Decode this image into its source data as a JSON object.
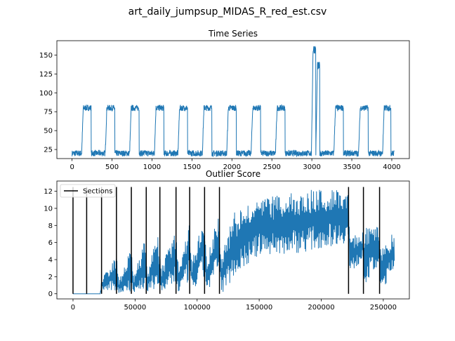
{
  "figure": {
    "suptitle": "art_daily_jumpsup_MIDAS_R_red_est.csv",
    "series_color": "#1f77b4",
    "section_color": "#000000"
  },
  "chart_data": [
    {
      "type": "line",
      "title": "Time Series",
      "xlabel": "",
      "ylabel": "",
      "xlim": [
        -190,
        4220
      ],
      "ylim": [
        13,
        169
      ],
      "xticks": [
        0,
        500,
        1000,
        1500,
        2000,
        2500,
        3000,
        3500,
        4000
      ],
      "yticks": [
        25,
        50,
        75,
        100,
        125,
        150
      ],
      "grid": false,
      "series": [
        {
          "color": "#1f77b4",
          "description": "daily square-wave pattern: baseline about 20 with high plateaus about 80; one jump to about 160 near x = 3000",
          "baseline": 20,
          "plateau_high": 80,
          "noise": 4,
          "plateaus": [
            {
              "start": 120,
              "end": 240,
              "level": 80
            },
            {
              "start": 415,
              "end": 535,
              "level": 80
            },
            {
              "start": 720,
              "end": 840,
              "level": 80
            },
            {
              "start": 1030,
              "end": 1150,
              "level": 80
            },
            {
              "start": 1325,
              "end": 1445,
              "level": 80
            },
            {
              "start": 1630,
              "end": 1750,
              "level": 80
            },
            {
              "start": 1935,
              "end": 2055,
              "level": 80
            },
            {
              "start": 2240,
              "end": 2360,
              "level": 80
            },
            {
              "start": 2545,
              "end": 2665,
              "level": 80
            },
            {
              "start": 2995,
              "end": 3050,
              "level": 158
            },
            {
              "start": 3050,
              "end": 3100,
              "level": 135
            },
            {
              "start": 3275,
              "end": 3395,
              "level": 80
            },
            {
              "start": 3585,
              "end": 3705,
              "level": 80
            },
            {
              "start": 3885,
              "end": 3990,
              "level": 80
            }
          ],
          "x_end": 4031
        }
      ]
    },
    {
      "type": "line",
      "title": "Outlier Score",
      "xlabel": "",
      "ylabel": "",
      "xlim": [
        -13000,
        271000
      ],
      "ylim": [
        -0.6,
        13.2
      ],
      "xticks": [
        0,
        50000,
        100000,
        150000,
        200000,
        250000
      ],
      "yticks": [
        0,
        2,
        4,
        6,
        8,
        10,
        12
      ],
      "grid": false,
      "legend": {
        "placement": "upper-left",
        "entries": [
          "Sections"
        ]
      },
      "series": [
        {
          "color": "#1f77b4",
          "description": "dense oscillating outlier score: near 0 early, rising saw-tooth bursts, large dense band from about 120000 up to about 12.5 at 222000",
          "x_end": 259000,
          "envelope": [
            [
              0,
              0,
              0
            ],
            [
              22000,
              0,
              0
            ],
            [
              23000,
              0.3,
              1.8
            ],
            [
              35000,
              0.2,
              4.5
            ],
            [
              37000,
              0,
              1.5
            ],
            [
              47000,
              0.3,
              5.5
            ],
            [
              49000,
              0,
              2
            ],
            [
              58000,
              0.5,
              6.5
            ],
            [
              60000,
              0,
              2.5
            ],
            [
              68000,
              0.8,
              7.3
            ],
            [
              71000,
              0,
              3
            ],
            [
              83000,
              1,
              7.8
            ],
            [
              85000,
              0,
              3.5
            ],
            [
              94000,
              1.5,
              8.3
            ],
            [
              96000,
              0,
              4
            ],
            [
              105000,
              2,
              8.8
            ],
            [
              108000,
              0,
              4.5
            ],
            [
              117000,
              2.5,
              9.2
            ],
            [
              120000,
              0,
              5
            ],
            [
              130000,
              2,
              9.5
            ],
            [
              150000,
              4.5,
              11.0
            ],
            [
              170000,
              4.5,
              11.8
            ],
            [
              190000,
              5,
              12.2
            ],
            [
              222000,
              6,
              12.5
            ],
            [
              223000,
              2,
              7
            ],
            [
              233000,
              4,
              7
            ],
            [
              235000,
              1,
              8
            ],
            [
              246000,
              3,
              8
            ],
            [
              248000,
              0,
              5
            ],
            [
              259000,
              3,
              7.5
            ]
          ]
        }
      ],
      "sections": {
        "name": "Sections",
        "color": "#000000",
        "ymax": 12.5,
        "x": [
          0,
          11000,
          23000,
          35000,
          47000,
          59000,
          70000,
          83000,
          94000,
          106000,
          118000,
          222000,
          234000,
          247000
        ]
      }
    }
  ]
}
